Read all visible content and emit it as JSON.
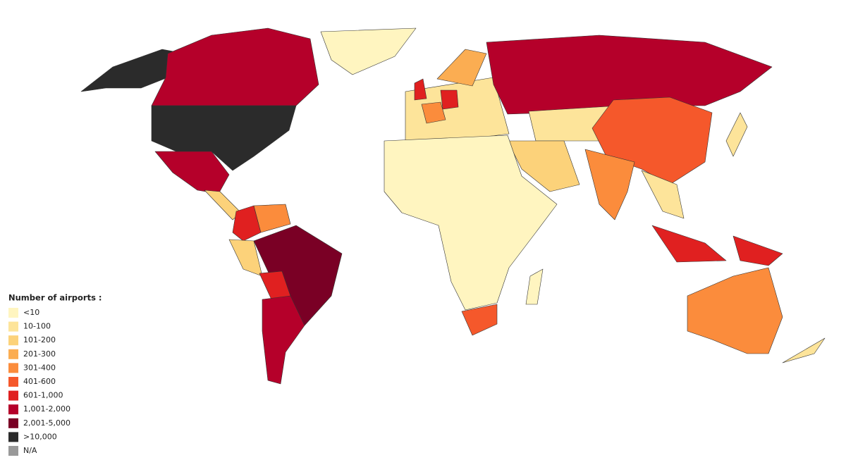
{
  "legend": {
    "title": "Number of airports :",
    "items": [
      {
        "label": "<10",
        "color": "#fff5c0"
      },
      {
        "label": "10-100",
        "color": "#fde49a"
      },
      {
        "label": "101-200",
        "color": "#fcd27a"
      },
      {
        "label": "201-300",
        "color": "#fbad52"
      },
      {
        "label": "301-400",
        "color": "#fb8c3c"
      },
      {
        "label": "401-600",
        "color": "#f5582b"
      },
      {
        "label": "601-1,000",
        "color": "#e02020"
      },
      {
        "label": "1,001-2,000",
        "color": "#b5002a"
      },
      {
        "label": "2,001-5,000",
        "color": "#7a0025"
      },
      {
        "label": ">10,000",
        "color": "#2b2b2b"
      },
      {
        "label": "N/A",
        "color": "#999999"
      }
    ]
  }
}
